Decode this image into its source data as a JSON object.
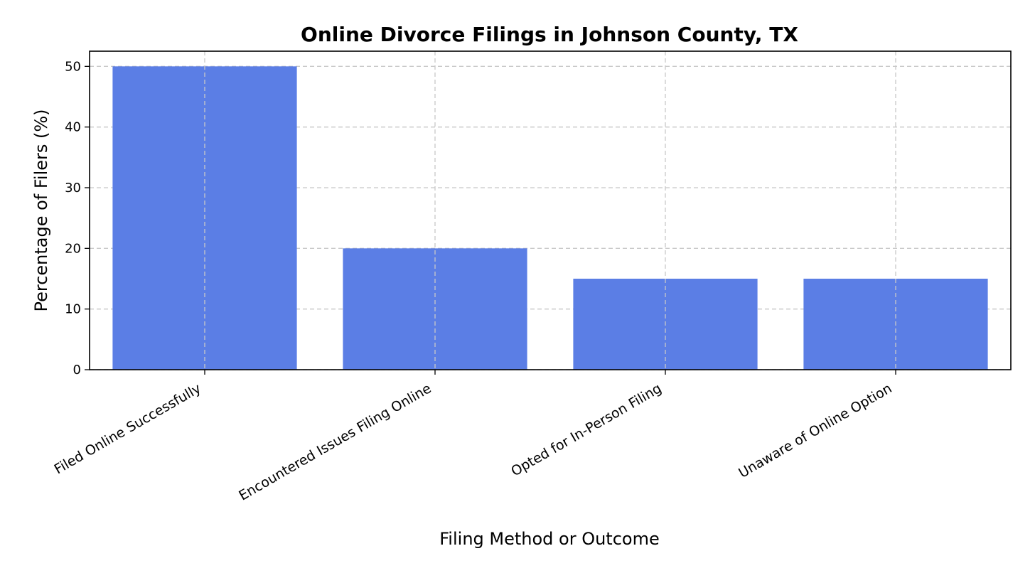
{
  "chart_data": {
    "type": "bar",
    "title": "Online Divorce Filings in Johnson County, TX",
    "xlabel": "Filing Method or Outcome",
    "ylabel": "Percentage of Filers (%)",
    "categories": [
      "Filed Online Successfully",
      "Encountered Issues Filing Online",
      "Opted for In-Person Filing",
      "Unaware of Online Option"
    ],
    "values": [
      50,
      20,
      15,
      15
    ],
    "ylim": [
      0,
      52.5
    ],
    "yticks": [
      0,
      10,
      20,
      30,
      40,
      50
    ],
    "grid": true,
    "bar_color": "#5b7ee5"
  }
}
